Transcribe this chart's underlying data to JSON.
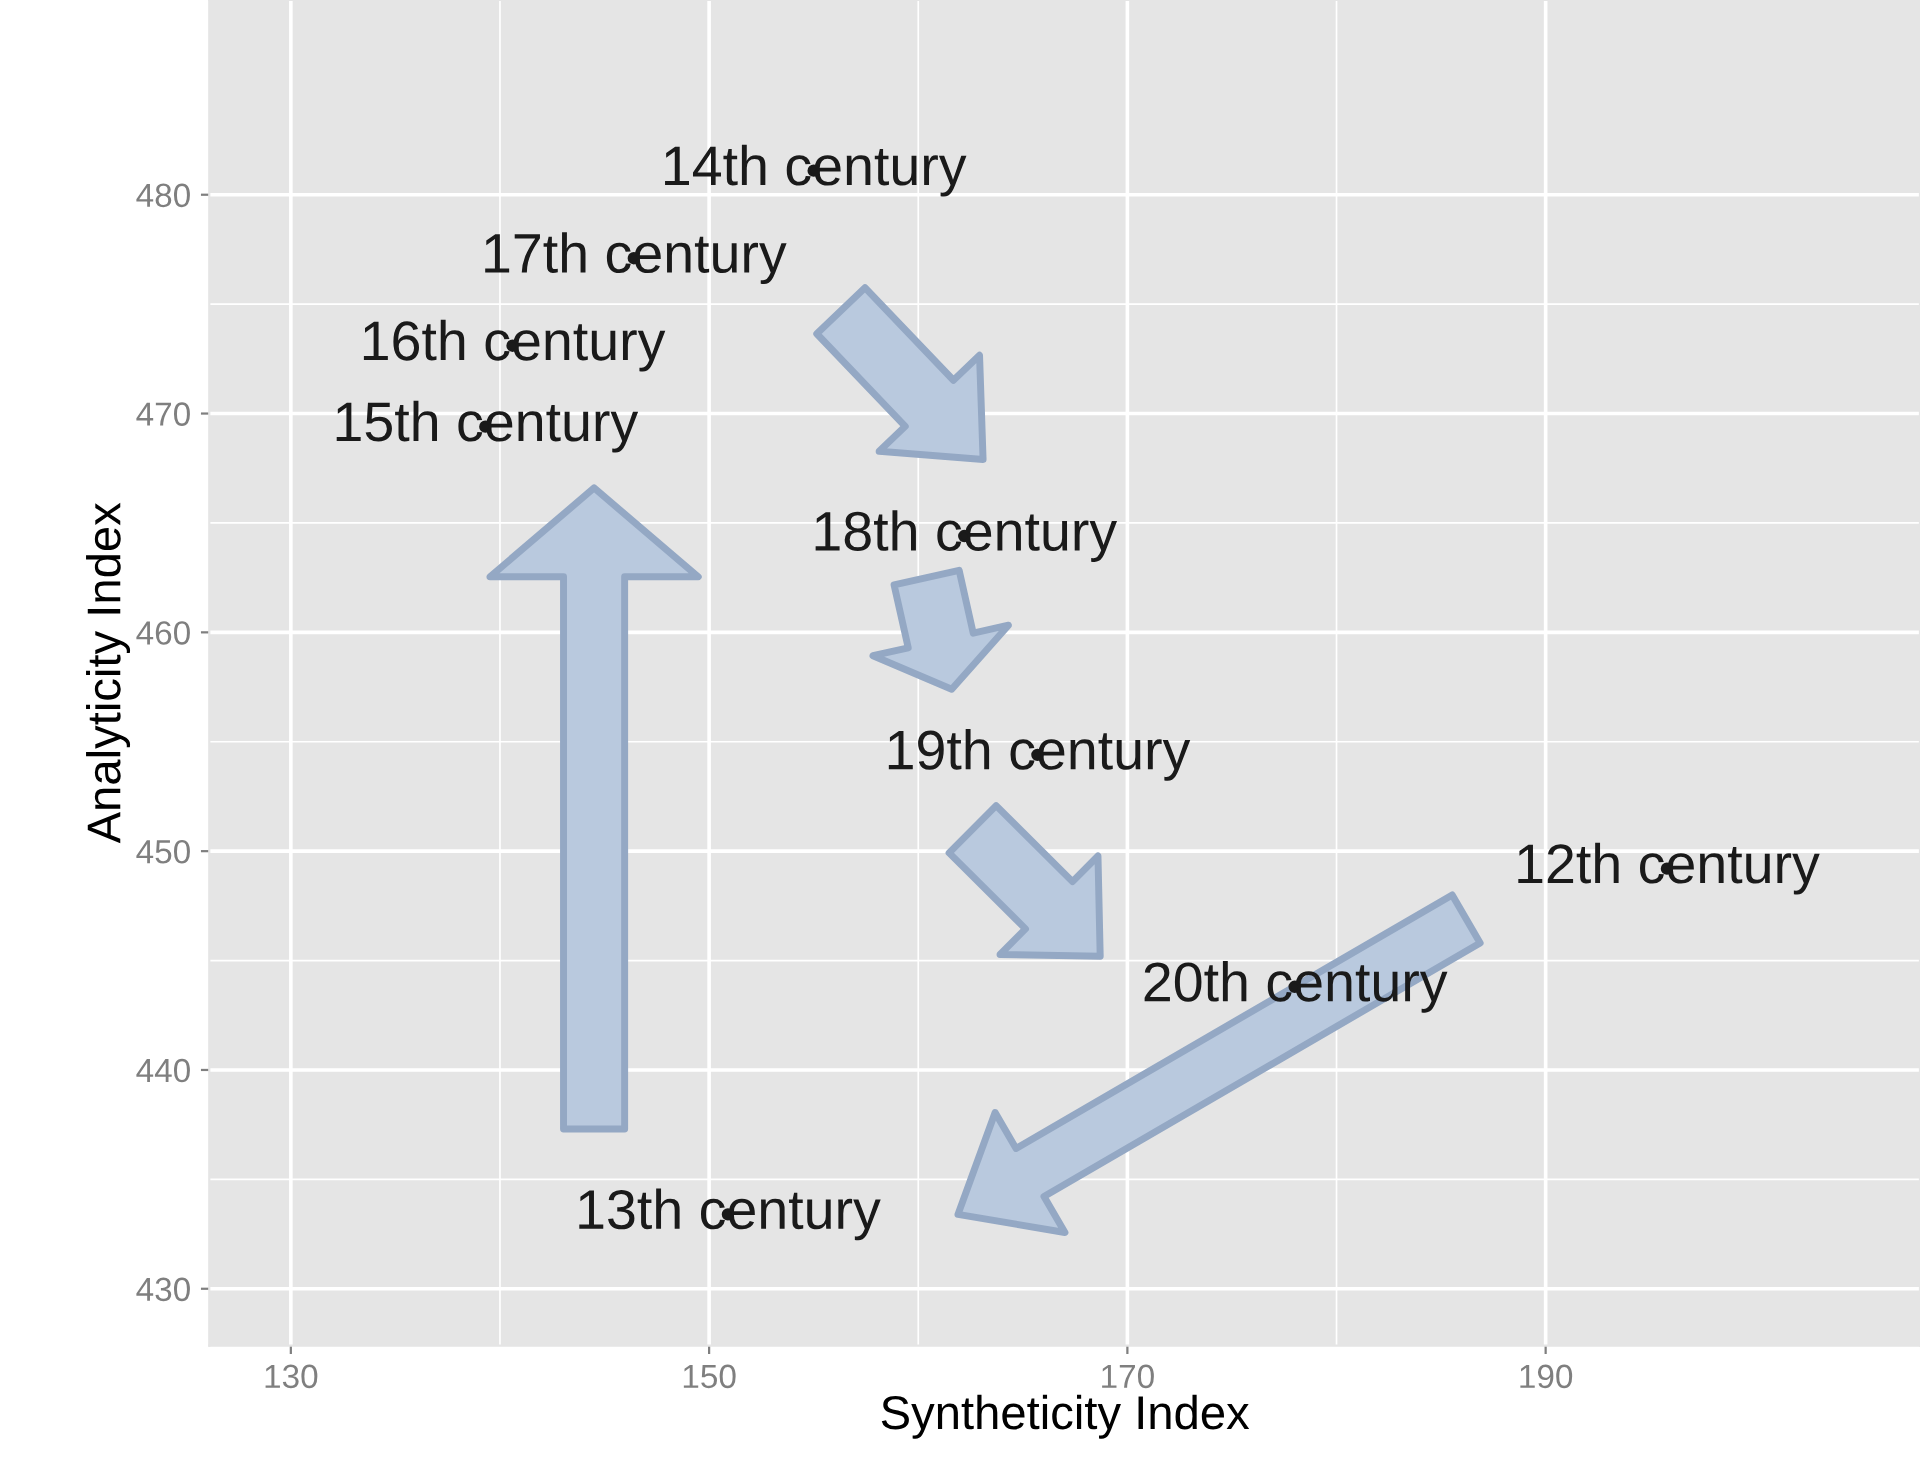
{
  "chart_data": {
    "type": "scatter",
    "xlabel": "Syntheticity Index",
    "ylabel": "Analyticity Index",
    "xlim": [
      126.1,
      207.9
    ],
    "ylim": [
      427.4,
      488.9
    ],
    "xticks": [
      130,
      150,
      170,
      190
    ],
    "yticks": [
      430,
      440,
      450,
      460,
      470,
      480
    ],
    "grid": true,
    "marker": "circle",
    "x": [
      195.8,
      150.9,
      155.0,
      139.3,
      140.6,
      146.4,
      162.2,
      165.7,
      178.0
    ],
    "values": [
      449.2,
      433.4,
      481.1,
      469.4,
      473.1,
      477.1,
      464.4,
      454.4,
      443.8
    ],
    "annotations": [
      {
        "text": "12th century",
        "x": 195.8,
        "y": 449.2
      },
      {
        "text": "13th century",
        "x": 150.9,
        "y": 433.4
      },
      {
        "text": "14th century",
        "x": 155.0,
        "y": 481.1
      },
      {
        "text": "15th century",
        "x": 139.3,
        "y": 469.4
      },
      {
        "text": "16th century",
        "x": 140.6,
        "y": 473.1
      },
      {
        "text": "17th century",
        "x": 146.4,
        "y": 477.1
      },
      {
        "text": "18th century",
        "x": 162.2,
        "y": 464.4
      },
      {
        "text": "19th century",
        "x": 165.7,
        "y": 454.4
      },
      {
        "text": "20th century",
        "x": 178.0,
        "y": 443.8
      }
    ]
  }
}
